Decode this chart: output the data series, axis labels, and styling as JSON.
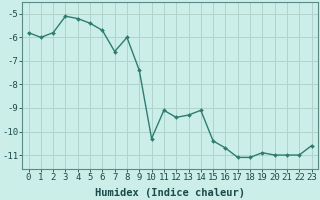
{
  "x": [
    0,
    1,
    2,
    3,
    4,
    5,
    6,
    7,
    8,
    9,
    10,
    11,
    12,
    13,
    14,
    15,
    16,
    17,
    18,
    19,
    20,
    21,
    22,
    23
  ],
  "y": [
    -5.8,
    -6.0,
    -5.8,
    -5.1,
    -5.2,
    -5.4,
    -5.7,
    -6.6,
    -6.0,
    -7.4,
    -10.3,
    -9.1,
    -9.4,
    -9.3,
    -9.1,
    -10.4,
    -10.7,
    -11.1,
    -11.1,
    -10.9,
    -11.0,
    -11.0,
    -11.0,
    -10.6
  ],
  "line_color": "#2d7d6f",
  "marker": "D",
  "marker_size": 2.0,
  "bg_color": "#cceee8",
  "grid_color": "#b0d4cc",
  "xlabel": "Humidex (Indice chaleur)",
  "xlim": [
    -0.5,
    23.5
  ],
  "ylim": [
    -11.6,
    -4.5
  ],
  "yticks": [
    -5,
    -6,
    -7,
    -8,
    -9,
    -10,
    -11
  ],
  "xticks": [
    0,
    1,
    2,
    3,
    4,
    5,
    6,
    7,
    8,
    9,
    10,
    11,
    12,
    13,
    14,
    15,
    16,
    17,
    18,
    19,
    20,
    21,
    22,
    23
  ],
  "line_width": 1.0,
  "xlabel_fontsize": 7.5,
  "tick_fontsize": 6.5
}
